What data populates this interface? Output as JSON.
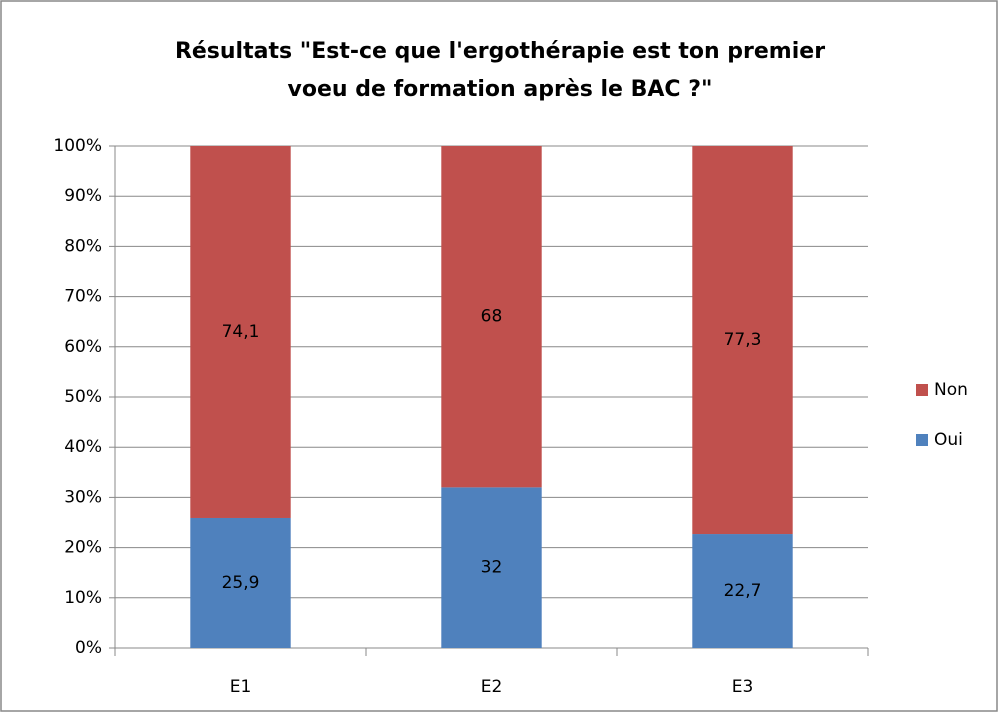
{
  "chart_data": {
    "type": "stacked_bar",
    "title": [
      "Résultats \"Est-ce que l'ergothérapie est ton premier",
      "voeu de formation après le BAC ?\""
    ],
    "categories": [
      "E1",
      "E2",
      "E3"
    ],
    "series": [
      {
        "name": "Oui",
        "color": "#4f81bd",
        "values": [
          25.9,
          32,
          22.7
        ],
        "value_labels": [
          "25,9",
          "32",
          "22,7"
        ]
      },
      {
        "name": "Non",
        "color": "#c0504d",
        "values": [
          74.1,
          68,
          77.3
        ],
        "value_labels": [
          "74,1",
          "68",
          "77,3"
        ]
      }
    ],
    "ylim": [
      0,
      100
    ],
    "yticks": [
      {
        "value": 0,
        "label": "0%"
      },
      {
        "value": 10,
        "label": "10%"
      },
      {
        "value": 20,
        "label": "20%"
      },
      {
        "value": 30,
        "label": "30%"
      },
      {
        "value": 40,
        "label": "40%"
      },
      {
        "value": 50,
        "label": "50%"
      },
      {
        "value": 60,
        "label": "60%"
      },
      {
        "value": 70,
        "label": "70%"
      },
      {
        "value": 80,
        "label": "80%"
      },
      {
        "value": 90,
        "label": "90%"
      },
      {
        "value": 100,
        "label": "100%"
      }
    ],
    "grid": true,
    "legend": "right"
  }
}
